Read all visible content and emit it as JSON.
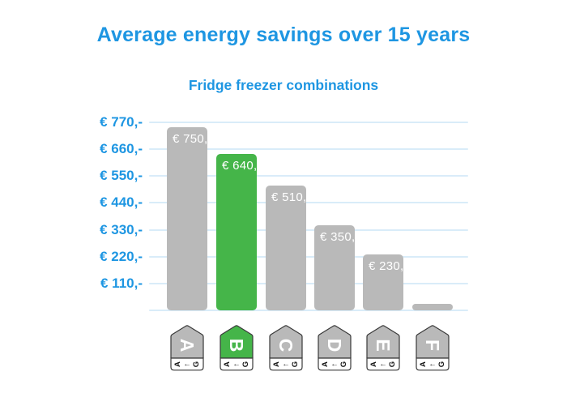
{
  "title": "Average energy savings over 15 years",
  "subtitle": "Fridge freezer combinations",
  "colors": {
    "accent_blue": "#1e96e2",
    "bar_gray": "#b9b9b9",
    "bar_green": "#45b549",
    "gridline": "#d9ecf9",
    "value_text": "#ffffff",
    "badge_border": "#3a3a3a",
    "badge_letter": "#ffffff",
    "badge_strip_bg": "#ffffff",
    "badge_strip_text": "#111111"
  },
  "chart_data": {
    "type": "bar",
    "title": "Average energy savings over 15 years",
    "subtitle": "Fridge freezer combinations",
    "categories": [
      "A",
      "B",
      "C",
      "D",
      "E",
      "F"
    ],
    "values": [
      750,
      640,
      510,
      350,
      230,
      25
    ],
    "value_labels": [
      "€ 750,-",
      "€ 640,-",
      "€ 510,-",
      "€ 350,-",
      "€ 230,-",
      ""
    ],
    "f_value_estimated": true,
    "highlighted_category": "B",
    "y_ticks": [
      "€ 770,-",
      "€ 660,-",
      "€ 550,-",
      "€ 440,-",
      "€ 330,-",
      "€ 220,-",
      "€ 110,-"
    ],
    "y_tick_values": [
      770,
      660,
      550,
      440,
      330,
      220,
      110
    ],
    "ylim": [
      0,
      770
    ],
    "grid": true,
    "legend": false,
    "xlabel": "",
    "ylabel": "",
    "badge_scale": {
      "from": "A",
      "arrow": "←",
      "to": "G"
    }
  }
}
